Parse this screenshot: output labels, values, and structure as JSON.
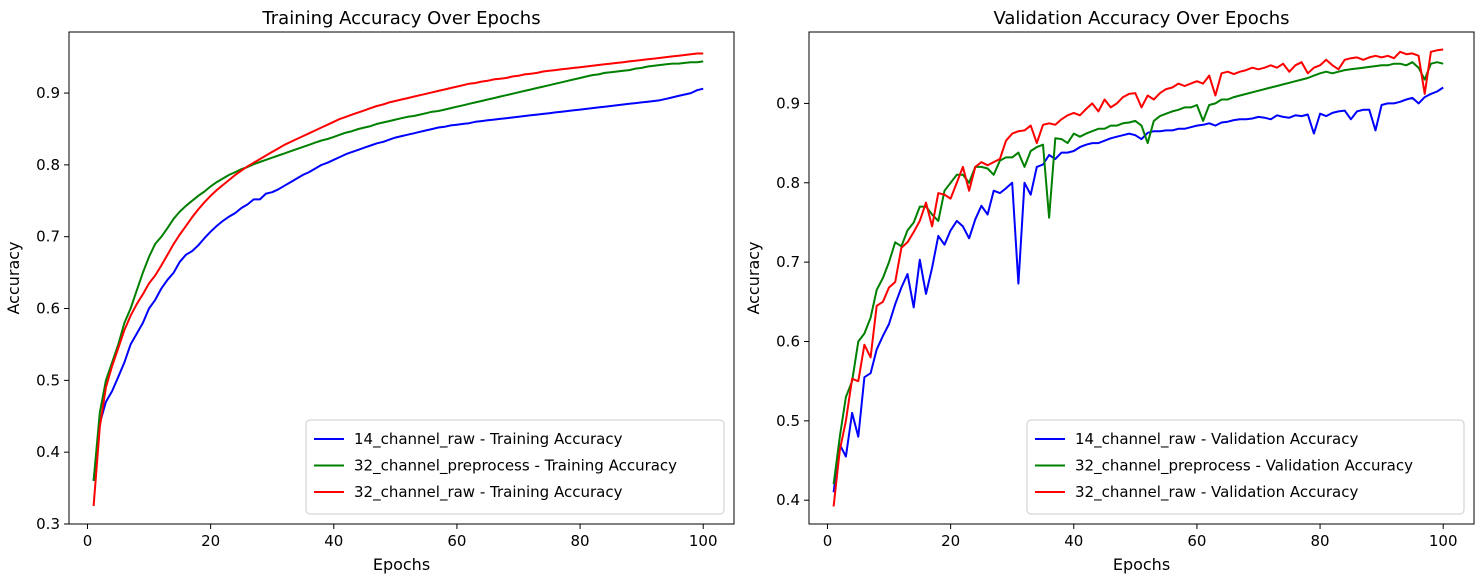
{
  "chart_data": [
    {
      "type": "line",
      "title": "Training Accuracy Over Epochs",
      "xlabel": "Epochs",
      "ylabel": "Accuracy",
      "xlim": [
        -3,
        105
      ],
      "ylim": [
        0.3,
        0.985
      ],
      "xticks": [
        "0",
        "20",
        "40",
        "60",
        "80",
        "100"
      ],
      "yticks": [
        "0.3",
        "0.4",
        "0.5",
        "0.6",
        "0.7",
        "0.8",
        "0.9"
      ],
      "grid": false,
      "legend_position": "lower-right",
      "x": [
        1,
        2,
        3,
        4,
        5,
        6,
        7,
        8,
        9,
        10,
        11,
        12,
        13,
        14,
        15,
        16,
        17,
        18,
        19,
        20,
        21,
        22,
        23,
        24,
        25,
        26,
        27,
        28,
        29,
        30,
        31,
        32,
        33,
        34,
        35,
        36,
        37,
        38,
        39,
        40,
        41,
        42,
        43,
        44,
        45,
        46,
        47,
        48,
        49,
        50,
        51,
        52,
        53,
        54,
        55,
        56,
        57,
        58,
        59,
        60,
        61,
        62,
        63,
        64,
        65,
        66,
        67,
        68,
        69,
        70,
        71,
        72,
        73,
        74,
        75,
        76,
        77,
        78,
        79,
        80,
        81,
        82,
        83,
        84,
        85,
        86,
        87,
        88,
        89,
        90,
        91,
        92,
        93,
        94,
        95,
        96,
        97,
        98,
        99,
        100
      ],
      "series": [
        {
          "name": "14_channel_raw - Training Accuracy",
          "color": "#0000ff",
          "values": [
            0.36,
            0.44,
            0.47,
            0.485,
            0.505,
            0.525,
            0.55,
            0.565,
            0.58,
            0.6,
            0.612,
            0.628,
            0.64,
            0.65,
            0.665,
            0.675,
            0.68,
            0.688,
            0.698,
            0.707,
            0.715,
            0.722,
            0.728,
            0.733,
            0.74,
            0.745,
            0.752,
            0.752,
            0.76,
            0.762,
            0.766,
            0.771,
            0.776,
            0.781,
            0.786,
            0.79,
            0.795,
            0.8,
            0.803,
            0.807,
            0.811,
            0.815,
            0.818,
            0.821,
            0.824,
            0.827,
            0.83,
            0.832,
            0.835,
            0.838,
            0.84,
            0.842,
            0.844,
            0.846,
            0.848,
            0.85,
            0.852,
            0.853,
            0.855,
            0.856,
            0.857,
            0.858,
            0.86,
            0.861,
            0.862,
            0.863,
            0.864,
            0.865,
            0.866,
            0.867,
            0.868,
            0.869,
            0.87,
            0.871,
            0.872,
            0.873,
            0.874,
            0.875,
            0.876,
            0.877,
            0.878,
            0.879,
            0.88,
            0.881,
            0.882,
            0.883,
            0.884,
            0.885,
            0.886,
            0.887,
            0.888,
            0.889,
            0.89,
            0.892,
            0.894,
            0.896,
            0.898,
            0.9,
            0.904,
            0.906
          ]
        },
        {
          "name": "32_channel_preprocess - Training Accuracy",
          "color": "#008000",
          "values": [
            0.36,
            0.455,
            0.5,
            0.525,
            0.55,
            0.58,
            0.6,
            0.625,
            0.65,
            0.672,
            0.69,
            0.7,
            0.712,
            0.725,
            0.735,
            0.743,
            0.75,
            0.757,
            0.763,
            0.77,
            0.776,
            0.781,
            0.786,
            0.79,
            0.794,
            0.797,
            0.801,
            0.804,
            0.807,
            0.81,
            0.813,
            0.816,
            0.819,
            0.822,
            0.825,
            0.828,
            0.831,
            0.834,
            0.836,
            0.839,
            0.842,
            0.845,
            0.847,
            0.85,
            0.852,
            0.854,
            0.857,
            0.859,
            0.861,
            0.863,
            0.865,
            0.867,
            0.868,
            0.87,
            0.872,
            0.874,
            0.875,
            0.877,
            0.879,
            0.881,
            0.883,
            0.885,
            0.887,
            0.889,
            0.891,
            0.893,
            0.895,
            0.897,
            0.899,
            0.901,
            0.903,
            0.905,
            0.907,
            0.909,
            0.911,
            0.913,
            0.915,
            0.917,
            0.919,
            0.921,
            0.923,
            0.925,
            0.926,
            0.928,
            0.929,
            0.93,
            0.931,
            0.932,
            0.934,
            0.935,
            0.937,
            0.938,
            0.939,
            0.94,
            0.941,
            0.941,
            0.942,
            0.943,
            0.943,
            0.944
          ]
        },
        {
          "name": "32_channel_raw - Training Accuracy",
          "color": "#ff0000",
          "values": [
            0.325,
            0.435,
            0.49,
            0.52,
            0.545,
            0.57,
            0.59,
            0.606,
            0.62,
            0.635,
            0.646,
            0.66,
            0.675,
            0.69,
            0.703,
            0.715,
            0.727,
            0.738,
            0.748,
            0.757,
            0.765,
            0.772,
            0.779,
            0.786,
            0.792,
            0.798,
            0.803,
            0.808,
            0.813,
            0.818,
            0.823,
            0.828,
            0.832,
            0.836,
            0.84,
            0.844,
            0.848,
            0.852,
            0.856,
            0.86,
            0.864,
            0.867,
            0.87,
            0.873,
            0.876,
            0.879,
            0.882,
            0.884,
            0.887,
            0.889,
            0.891,
            0.893,
            0.895,
            0.897,
            0.899,
            0.901,
            0.903,
            0.905,
            0.907,
            0.909,
            0.911,
            0.913,
            0.914,
            0.916,
            0.917,
            0.919,
            0.92,
            0.921,
            0.923,
            0.924,
            0.926,
            0.927,
            0.928,
            0.93,
            0.931,
            0.932,
            0.933,
            0.934,
            0.935,
            0.936,
            0.937,
            0.938,
            0.939,
            0.94,
            0.941,
            0.942,
            0.943,
            0.944,
            0.945,
            0.946,
            0.947,
            0.948,
            0.949,
            0.95,
            0.951,
            0.952,
            0.953,
            0.954,
            0.955,
            0.955
          ]
        }
      ]
    },
    {
      "type": "line",
      "title": "Validation Accuracy Over Epochs",
      "xlabel": "Epochs",
      "ylabel": "Accuracy",
      "xlim": [
        -3,
        105
      ],
      "ylim": [
        0.37,
        0.99
      ],
      "xticks": [
        "0",
        "20",
        "40",
        "60",
        "80",
        "100"
      ],
      "yticks": [
        "0.4",
        "0.5",
        "0.6",
        "0.7",
        "0.8",
        "0.9"
      ],
      "grid": false,
      "legend_position": "lower-right",
      "x": [
        1,
        2,
        3,
        4,
        5,
        6,
        7,
        8,
        9,
        10,
        11,
        12,
        13,
        14,
        15,
        16,
        17,
        18,
        19,
        20,
        21,
        22,
        23,
        24,
        25,
        26,
        27,
        28,
        29,
        30,
        31,
        32,
        33,
        34,
        35,
        36,
        37,
        38,
        39,
        40,
        41,
        42,
        43,
        44,
        45,
        46,
        47,
        48,
        49,
        50,
        51,
        52,
        53,
        54,
        55,
        56,
        57,
        58,
        59,
        60,
        61,
        62,
        63,
        64,
        65,
        66,
        67,
        68,
        69,
        70,
        71,
        72,
        73,
        74,
        75,
        76,
        77,
        78,
        79,
        80,
        81,
        82,
        83,
        84,
        85,
        86,
        87,
        88,
        89,
        90,
        91,
        92,
        93,
        94,
        95,
        96,
        97,
        98,
        99,
        100
      ],
      "series": [
        {
          "name": "14_channel_raw - Validation Accuracy",
          "color": "#0000ff",
          "values": [
            0.41,
            0.47,
            0.455,
            0.51,
            0.48,
            0.555,
            0.56,
            0.59,
            0.607,
            0.622,
            0.647,
            0.668,
            0.685,
            0.643,
            0.703,
            0.66,
            0.693,
            0.733,
            0.722,
            0.74,
            0.752,
            0.745,
            0.73,
            0.754,
            0.771,
            0.76,
            0.79,
            0.787,
            0.793,
            0.8,
            0.673,
            0.8,
            0.785,
            0.82,
            0.823,
            0.835,
            0.83,
            0.838,
            0.838,
            0.84,
            0.845,
            0.848,
            0.85,
            0.85,
            0.853,
            0.856,
            0.858,
            0.86,
            0.862,
            0.86,
            0.855,
            0.863,
            0.865,
            0.865,
            0.866,
            0.866,
            0.868,
            0.868,
            0.87,
            0.872,
            0.873,
            0.875,
            0.872,
            0.876,
            0.877,
            0.879,
            0.88,
            0.88,
            0.881,
            0.883,
            0.882,
            0.88,
            0.885,
            0.883,
            0.882,
            0.885,
            0.884,
            0.886,
            0.862,
            0.887,
            0.884,
            0.888,
            0.89,
            0.891,
            0.88,
            0.89,
            0.892,
            0.892,
            0.866,
            0.898,
            0.9,
            0.9,
            0.902,
            0.905,
            0.907,
            0.9,
            0.908,
            0.912,
            0.915,
            0.92
          ]
        },
        {
          "name": "32_channel_preprocess - Validation Accuracy",
          "color": "#008000",
          "values": [
            0.42,
            0.48,
            0.53,
            0.55,
            0.6,
            0.61,
            0.63,
            0.665,
            0.68,
            0.7,
            0.725,
            0.72,
            0.74,
            0.75,
            0.77,
            0.77,
            0.76,
            0.752,
            0.79,
            0.8,
            0.81,
            0.81,
            0.8,
            0.82,
            0.82,
            0.818,
            0.81,
            0.828,
            0.832,
            0.832,
            0.838,
            0.82,
            0.84,
            0.845,
            0.848,
            0.756,
            0.856,
            0.855,
            0.85,
            0.862,
            0.858,
            0.862,
            0.865,
            0.868,
            0.868,
            0.872,
            0.872,
            0.875,
            0.876,
            0.878,
            0.872,
            0.85,
            0.878,
            0.884,
            0.887,
            0.89,
            0.892,
            0.895,
            0.895,
            0.898,
            0.878,
            0.898,
            0.9,
            0.905,
            0.905,
            0.908,
            0.91,
            0.912,
            0.914,
            0.916,
            0.918,
            0.92,
            0.922,
            0.924,
            0.926,
            0.928,
            0.93,
            0.932,
            0.935,
            0.938,
            0.94,
            0.938,
            0.94,
            0.942,
            0.943,
            0.944,
            0.945,
            0.946,
            0.947,
            0.948,
            0.948,
            0.95,
            0.95,
            0.948,
            0.952,
            0.945,
            0.93,
            0.95,
            0.952,
            0.95
          ]
        },
        {
          "name": "32_channel_raw - Validation Accuracy",
          "color": "#ff0000",
          "values": [
            0.392,
            0.463,
            0.5,
            0.553,
            0.55,
            0.596,
            0.58,
            0.645,
            0.65,
            0.668,
            0.675,
            0.718,
            0.725,
            0.738,
            0.752,
            0.775,
            0.745,
            0.787,
            0.785,
            0.78,
            0.8,
            0.82,
            0.79,
            0.82,
            0.826,
            0.822,
            0.826,
            0.83,
            0.853,
            0.862,
            0.865,
            0.866,
            0.872,
            0.85,
            0.873,
            0.875,
            0.873,
            0.88,
            0.885,
            0.888,
            0.885,
            0.893,
            0.9,
            0.89,
            0.905,
            0.895,
            0.9,
            0.908,
            0.912,
            0.913,
            0.895,
            0.91,
            0.905,
            0.913,
            0.918,
            0.92,
            0.925,
            0.922,
            0.925,
            0.928,
            0.925,
            0.935,
            0.91,
            0.938,
            0.94,
            0.937,
            0.94,
            0.942,
            0.945,
            0.943,
            0.945,
            0.948,
            0.945,
            0.95,
            0.94,
            0.948,
            0.952,
            0.938,
            0.945,
            0.948,
            0.955,
            0.948,
            0.943,
            0.955,
            0.957,
            0.958,
            0.955,
            0.958,
            0.96,
            0.958,
            0.96,
            0.957,
            0.965,
            0.962,
            0.963,
            0.96,
            0.912,
            0.965,
            0.967,
            0.968
          ]
        }
      ]
    }
  ]
}
